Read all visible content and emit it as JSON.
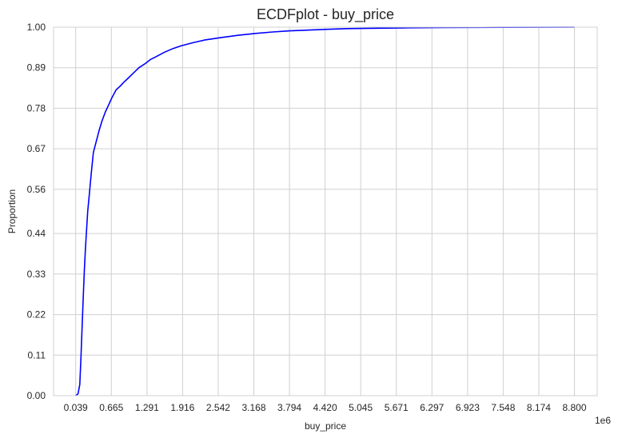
{
  "chart_data": {
    "type": "line",
    "title": "ECDFplot - buy_price",
    "xlabel": "buy_price",
    "ylabel": "Proportion",
    "x_scale_label": "1e6",
    "xlim": [
      -0.35,
      9.2
    ],
    "ylim": [
      0,
      1
    ],
    "grid": true,
    "x_ticks": [
      "0.039",
      "0.665",
      "1.291",
      "1.916",
      "2.542",
      "3.168",
      "3.794",
      "4.420",
      "5.045",
      "5.671",
      "6.297",
      "6.923",
      "7.548",
      "8.174",
      "8.800"
    ],
    "y_ticks": [
      "0.00",
      "0.11",
      "0.22",
      "0.33",
      "0.44",
      "0.56",
      "0.67",
      "0.78",
      "0.89",
      "1.00"
    ],
    "series": [
      {
        "color": "#0000ff",
        "x": [
          0.039,
          0.08,
          0.11,
          0.13,
          0.15,
          0.17,
          0.19,
          0.21,
          0.23,
          0.25,
          0.28,
          0.31,
          0.35,
          0.4,
          0.45,
          0.5,
          0.56,
          0.62,
          0.68,
          0.75,
          0.82,
          0.88,
          0.95,
          1.05,
          1.15,
          1.25,
          1.35,
          1.45,
          1.6,
          1.75,
          1.9,
          2.1,
          2.3,
          2.6,
          2.9,
          3.2,
          3.5,
          3.8,
          4.1,
          4.4,
          4.8,
          5.2,
          5.8,
          6.5,
          7.5,
          8.8
        ],
        "y": [
          0.0,
          0.005,
          0.03,
          0.1,
          0.18,
          0.26,
          0.34,
          0.4,
          0.45,
          0.5,
          0.55,
          0.6,
          0.66,
          0.69,
          0.72,
          0.745,
          0.77,
          0.79,
          0.81,
          0.83,
          0.84,
          0.85,
          0.86,
          0.875,
          0.89,
          0.9,
          0.912,
          0.92,
          0.932,
          0.942,
          0.95,
          0.958,
          0.965,
          0.972,
          0.978,
          0.983,
          0.987,
          0.99,
          0.992,
          0.994,
          0.996,
          0.997,
          0.998,
          0.999,
          0.9995,
          1.0
        ]
      }
    ]
  }
}
